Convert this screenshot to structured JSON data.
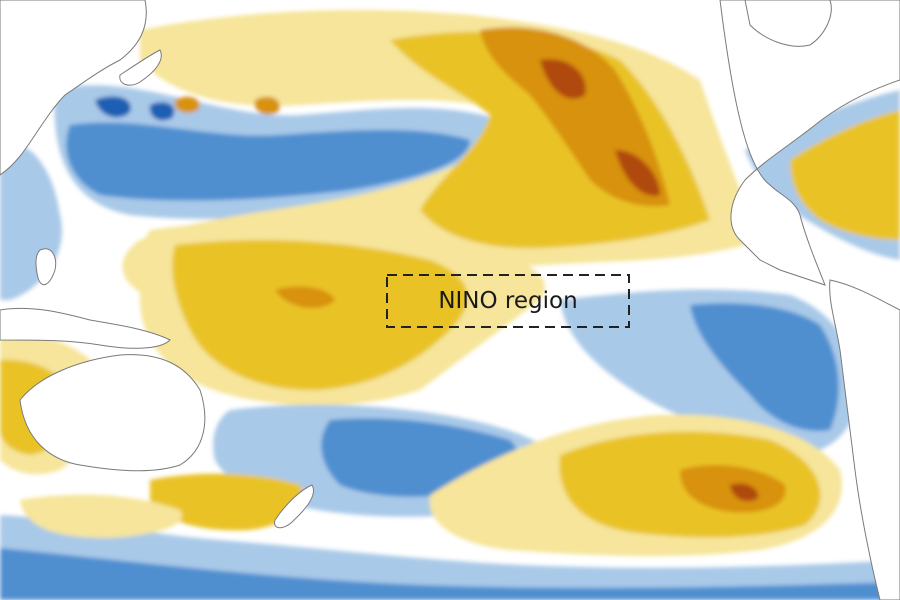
{
  "map": {
    "annotation": {
      "label": "NINO region"
    },
    "palette": {
      "strong_cold": "#1f5fb4",
      "cold": "#4f8fd0",
      "cool": "#a9c9e8",
      "neutral": "#ffffff",
      "warm_light": "#f6e59a",
      "warm": "#e9c326",
      "hot": "#d8920c",
      "very_hot": "#b04a0c",
      "land": "#ffffff",
      "coastline": "#7a7a7a",
      "box_stroke": "#222222"
    }
  }
}
